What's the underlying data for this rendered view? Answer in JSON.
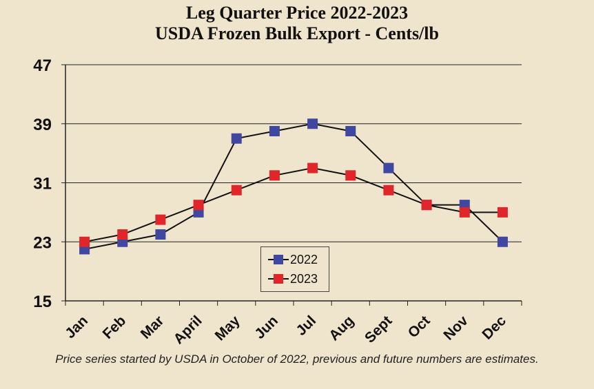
{
  "chart_data": {
    "type": "line",
    "title": "Leg Quarter Price 2022-2023",
    "subtitle": "USDA Frozen Bulk Export - Cents/lb",
    "categories": [
      "Jan",
      "Feb",
      "Mar",
      "April",
      "May",
      "Jun",
      "Jul",
      "Aug",
      "Sept",
      "Oct",
      "Nov",
      "Dec"
    ],
    "series": [
      {
        "name": "2022",
        "color": "#3f47a0",
        "values": [
          22,
          23,
          24,
          27,
          37,
          38,
          39,
          38,
          33,
          28,
          28,
          23
        ]
      },
      {
        "name": "2023",
        "color": "#e0262a",
        "values": [
          23,
          24,
          26,
          28,
          30,
          32,
          33,
          32,
          30,
          28,
          27,
          27
        ]
      }
    ],
    "yticks": [
      15,
      23,
      31,
      39,
      47
    ],
    "ylim": [
      15,
      47
    ],
    "grid": true,
    "legend_position": "center-bottom",
    "footnote": "Price series started by USDA in October of 2022, previous and future numbers are estimates."
  }
}
